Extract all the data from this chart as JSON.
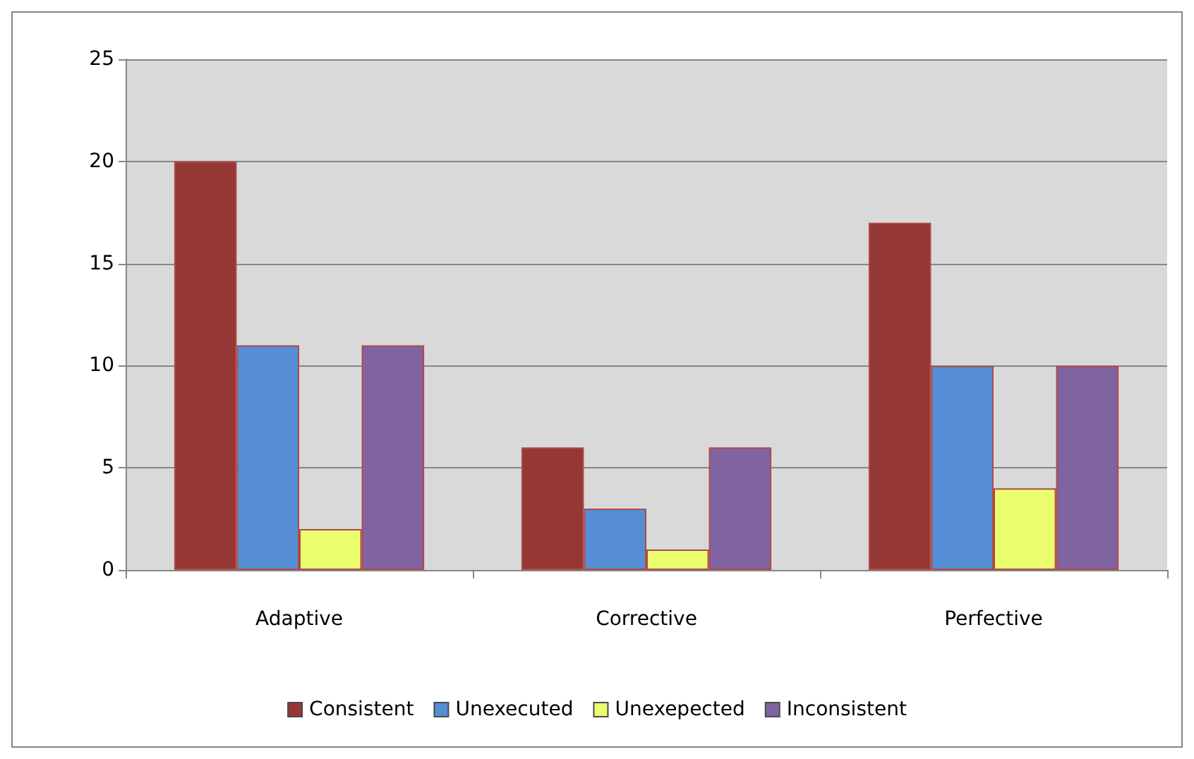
{
  "chart_data": {
    "type": "bar",
    "categories": [
      "Adaptive",
      "Corrective",
      "Perfective"
    ],
    "series": [
      {
        "name": "Consistent",
        "color": "#953735",
        "values": [
          20,
          6,
          17
        ]
      },
      {
        "name": "Unexecuted",
        "color": "#558ed5",
        "values": [
          11,
          3,
          10
        ]
      },
      {
        "name": "Unexepected",
        "color": "#ebff6e",
        "values": [
          2,
          1,
          4
        ]
      },
      {
        "name": "Inconsistent",
        "color": "#8064a2",
        "values": [
          11,
          6,
          10
        ]
      }
    ],
    "ylim": [
      0,
      25
    ],
    "yticks": [
      0,
      5,
      10,
      15,
      20,
      25
    ],
    "grid": "y",
    "legend": "bottom"
  }
}
